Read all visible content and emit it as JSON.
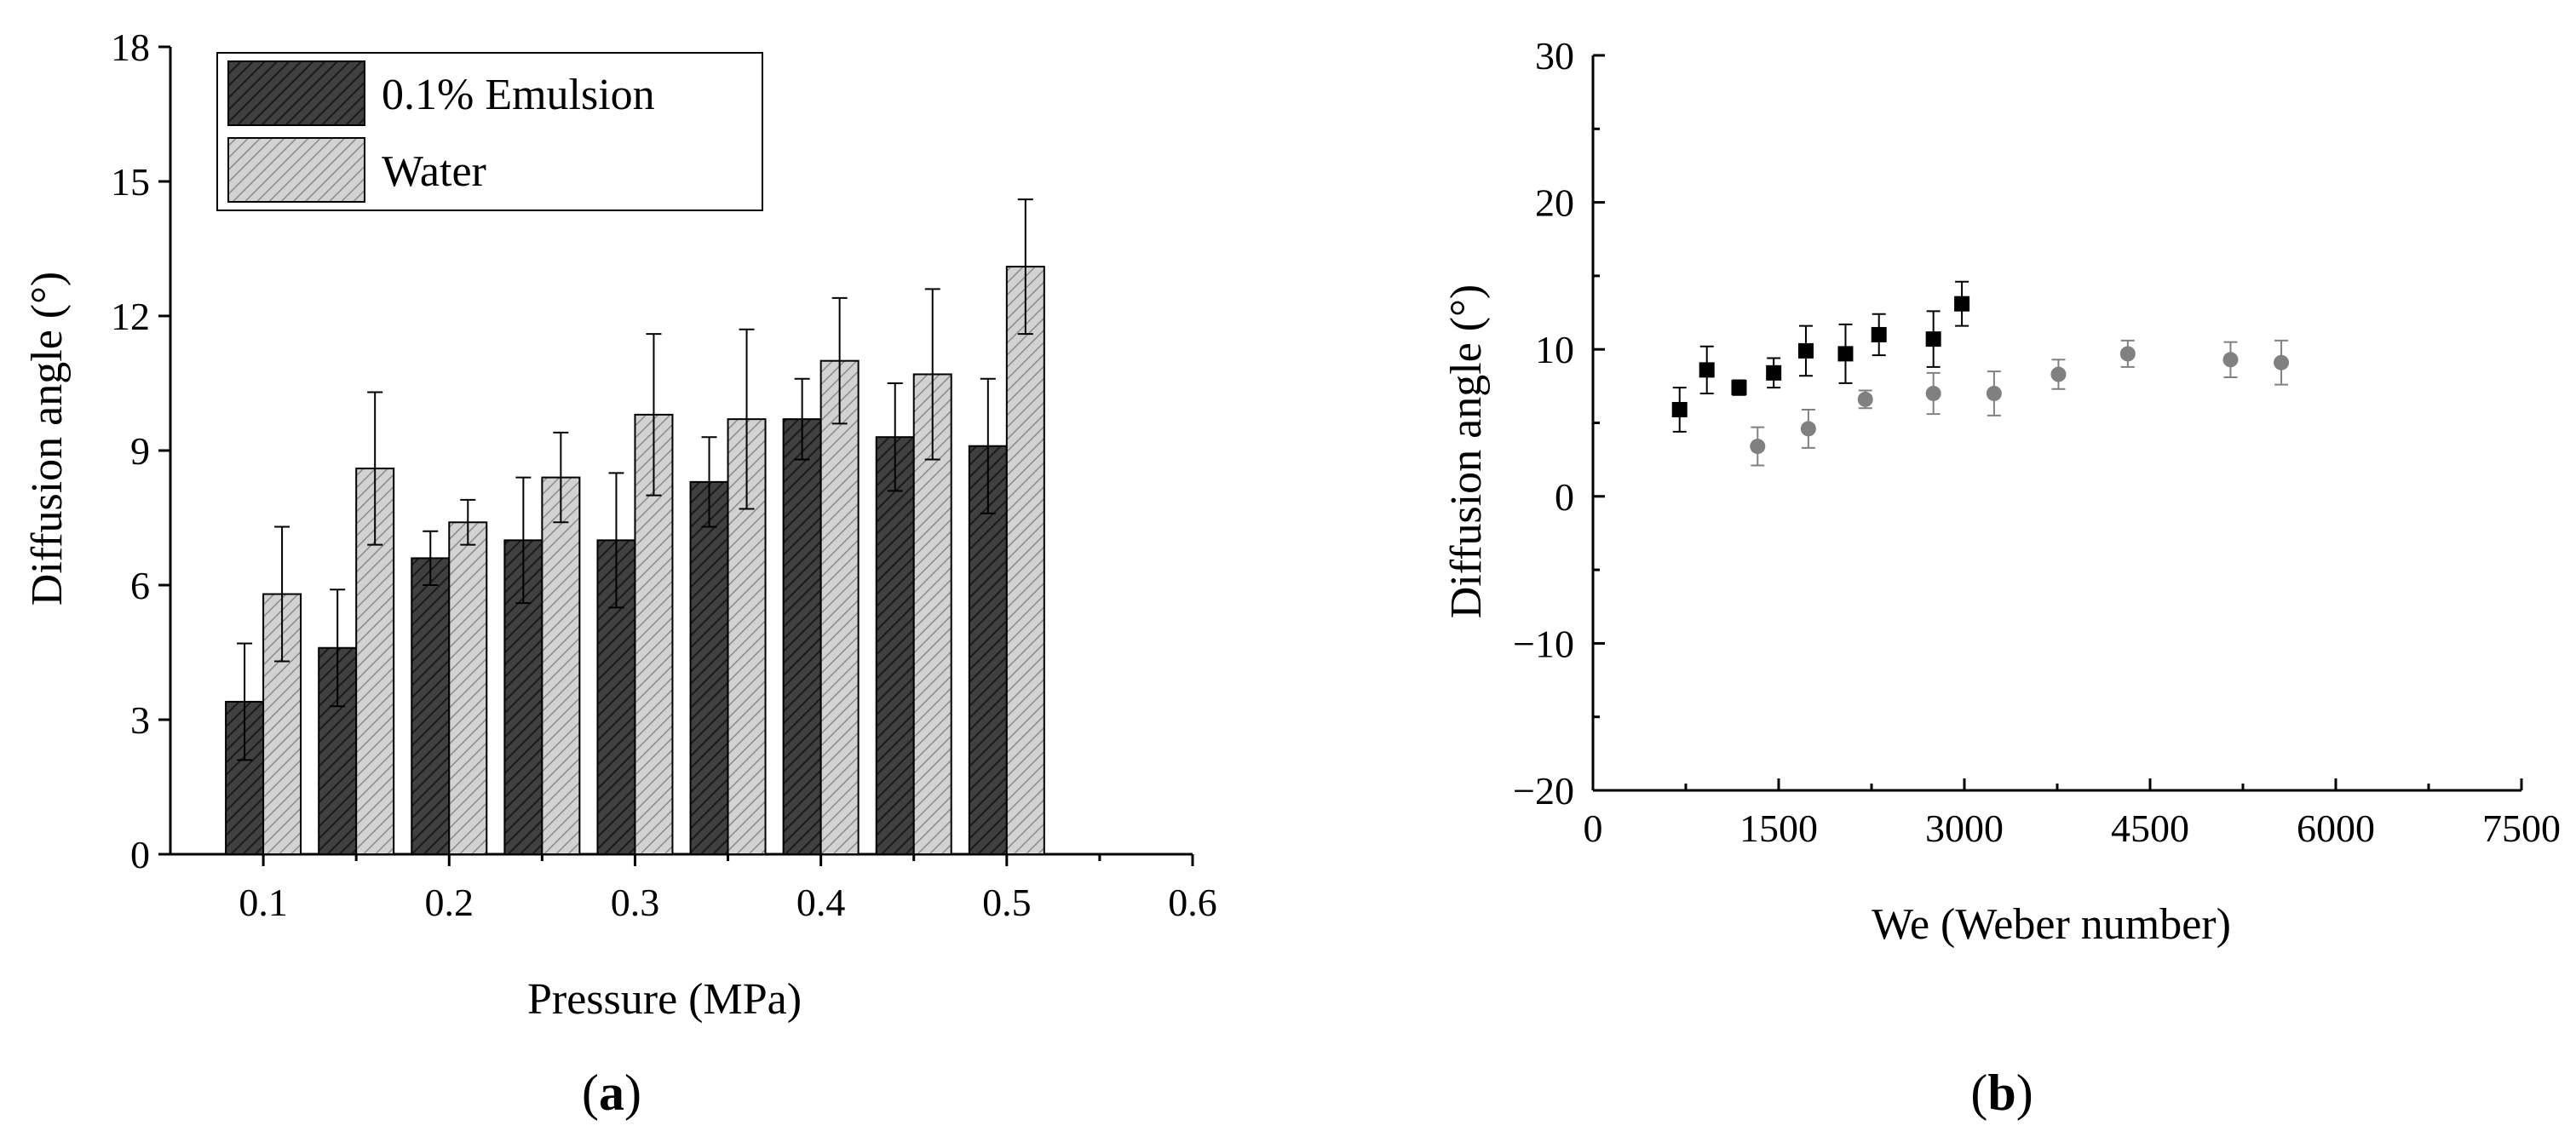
{
  "panels": {
    "a": {
      "label_open": "(",
      "label_letter": "a",
      "label_close": ")"
    },
    "b": {
      "label_open": "(",
      "label_letter": "b",
      "label_close": ")"
    }
  },
  "chart_data": [
    {
      "type": "bar",
      "xlabel": "Pressure (MPa)",
      "ylabel": "Diffusion angle (°)",
      "ylim": [
        0,
        18
      ],
      "xlim": [
        0.05,
        0.6
      ],
      "yticks": [
        "0",
        "3",
        "6",
        "9",
        "12",
        "15",
        "18"
      ],
      "xticks": [
        "0.1",
        "0.2",
        "0.3",
        "0.4",
        "0.5",
        "0.6"
      ],
      "legend_position": "top-left",
      "categories": [
        0.1,
        0.15,
        0.2,
        0.25,
        0.3,
        0.35,
        0.4,
        0.45,
        0.5
      ],
      "series": [
        {
          "name": "0.1% Emulsion",
          "color": "#404040",
          "values": [
            3.4,
            4.6,
            6.6,
            7.0,
            7.0,
            8.3,
            9.7,
            9.3,
            9.1
          ],
          "errors": [
            1.3,
            1.3,
            0.6,
            1.4,
            1.5,
            1.0,
            0.9,
            1.2,
            1.5
          ]
        },
        {
          "name": "Water",
          "color": "#c8c8c8",
          "values": [
            5.8,
            8.6,
            7.4,
            8.4,
            9.8,
            9.7,
            11.0,
            10.7,
            13.1
          ],
          "errors": [
            1.5,
            1.7,
            0.5,
            1.0,
            1.8,
            2.0,
            1.4,
            1.9,
            1.5
          ]
        }
      ]
    },
    {
      "type": "scatter",
      "xlabel": "We (Weber number)",
      "ylabel": "Diffusion angle (°)",
      "xlim": [
        0,
        7500
      ],
      "ylim": [
        -20,
        30
      ],
      "xticks": [
        "0",
        "1500",
        "3000",
        "4500",
        "6000",
        "7500"
      ],
      "yticks": [
        "−20",
        "−10",
        "0",
        "10",
        "20",
        "30"
      ],
      "series": [
        {
          "marker": "square",
          "color": "#000000",
          "points": [
            {
              "x": 700,
              "y": 5.9,
              "err": 1.5
            },
            {
              "x": 920,
              "y": 8.6,
              "err": 1.6
            },
            {
              "x": 1180,
              "y": 7.4,
              "err": 0.5
            },
            {
              "x": 1460,
              "y": 8.4,
              "err": 1.0
            },
            {
              "x": 1720,
              "y": 9.9,
              "err": 1.7
            },
            {
              "x": 2040,
              "y": 9.7,
              "err": 2.0
            },
            {
              "x": 2310,
              "y": 11.0,
              "err": 1.4
            },
            {
              "x": 2750,
              "y": 10.7,
              "err": 1.9
            },
            {
              "x": 2980,
              "y": 13.1,
              "err": 1.5
            }
          ]
        },
        {
          "marker": "circle",
          "color": "#808080",
          "points": [
            {
              "x": 1330,
              "y": 3.4,
              "err": 1.3
            },
            {
              "x": 1740,
              "y": 4.6,
              "err": 1.3
            },
            {
              "x": 2200,
              "y": 6.6,
              "err": 0.6
            },
            {
              "x": 2750,
              "y": 7.0,
              "err": 1.4
            },
            {
              "x": 3240,
              "y": 7.0,
              "err": 1.5
            },
            {
              "x": 3760,
              "y": 8.3,
              "err": 1.0
            },
            {
              "x": 4320,
              "y": 9.7,
              "err": 0.9
            },
            {
              "x": 5150,
              "y": 9.3,
              "err": 1.2
            },
            {
              "x": 5560,
              "y": 9.1,
              "err": 1.5
            }
          ]
        }
      ]
    }
  ]
}
